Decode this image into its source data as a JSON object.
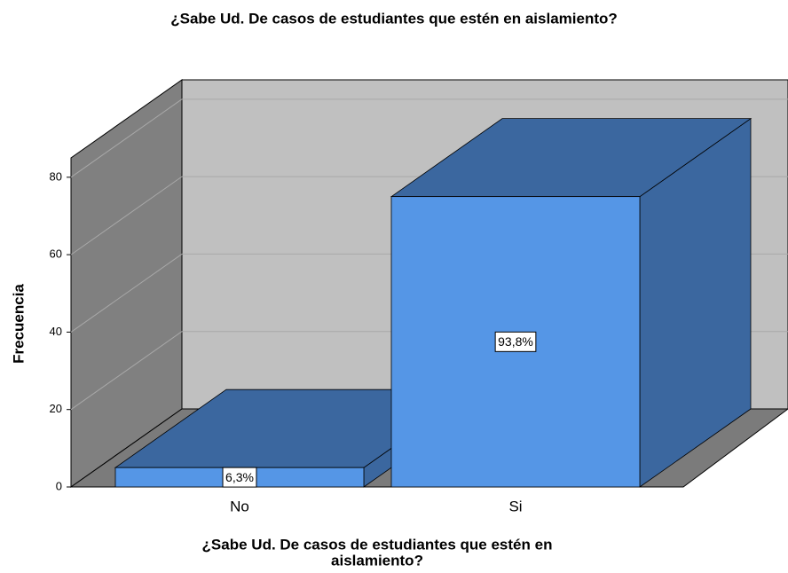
{
  "chart_data": {
    "type": "bar3d",
    "title": "¿Sabe Ud. De casos de estudiantes que estén en aislamiento?",
    "y_label": "Frecuencia",
    "x_label": [
      "¿Sabe Ud. De casos de estudiantes que estén en",
      "aislamiento?"
    ],
    "categories": [
      "No",
      "Si"
    ],
    "values": [
      5,
      75
    ],
    "percentages": [
      6.3,
      93.8
    ],
    "percentage_labels": [
      "6,3%",
      "93,8%"
    ],
    "color": "#5596e6",
    "shade_color": "#3b679f",
    "ylim": [
      0,
      85
    ],
    "yticks": [
      0,
      20,
      40,
      60,
      80
    ],
    "grid": true
  }
}
